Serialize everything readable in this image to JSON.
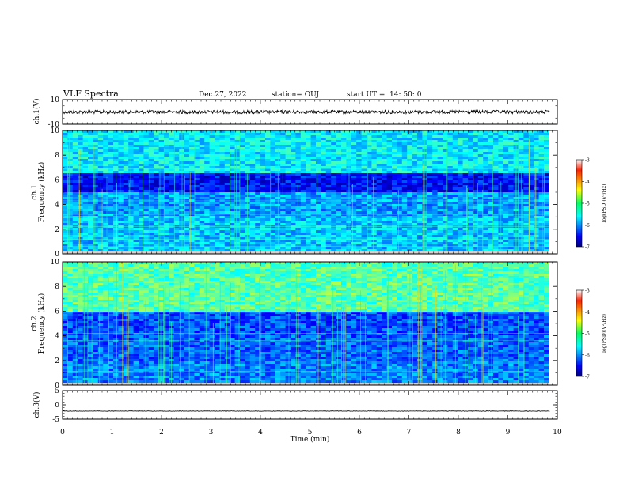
{
  "header": {
    "title": "VLF Spectra",
    "date": "Dec.27, 2022",
    "station": "station= OUJ",
    "start_label": "start  UT =",
    "start_time": "14: 50: 0"
  },
  "chart_data": [
    {
      "type": "line",
      "panel": "ch1-waveform",
      "ylabel": "ch.1(V)",
      "ylim": [
        -10,
        10
      ],
      "yticks": [
        "10",
        "-10"
      ],
      "xlim": [
        0,
        10
      ],
      "baseline_y": 0
    },
    {
      "type": "heatmap",
      "panel": "ch1-spectrogram",
      "ylabel": "Frequency (kHz)",
      "ylabel2": "ch.1",
      "ylim": [
        0,
        10
      ],
      "yticks": [
        "0",
        "2",
        "4",
        "6",
        "8",
        "10"
      ],
      "xlim": [
        0,
        10
      ],
      "data_end_min": 9.83,
      "colorbar": {
        "label": "log(PSD)(V²/Hz)",
        "range": [
          -7,
          -3
        ],
        "ticks": [
          "-3",
          "-4",
          "-5",
          "-6",
          "-7"
        ]
      }
    },
    {
      "type": "heatmap",
      "panel": "ch2-spectrogram",
      "ylabel": "Frequency (kHz)",
      "ylabel2": "ch.2",
      "ylim": [
        0,
        10
      ],
      "yticks": [
        "0",
        "2",
        "4",
        "6",
        "8",
        "10"
      ],
      "xlim": [
        0,
        10
      ],
      "data_end_min": 9.83,
      "colorbar": {
        "label": "log(PSD)(V²/Hz)",
        "range": [
          -7,
          -3
        ],
        "ticks": [
          "-3",
          "-4",
          "-5",
          "-6",
          "-7"
        ]
      }
    },
    {
      "type": "line",
      "panel": "ch3-waveform",
      "ylabel": "ch.3(V)",
      "ylim": [
        -5,
        5
      ],
      "yticks": [
        "5",
        "0",
        "-5"
      ],
      "xlim": [
        0,
        10
      ],
      "baseline_y": -2.2
    }
  ],
  "xaxis": {
    "label": "Time (min)",
    "ticks": [
      "0",
      "1",
      "2",
      "3",
      "4",
      "5",
      "6",
      "7",
      "8",
      "9",
      "10"
    ]
  }
}
